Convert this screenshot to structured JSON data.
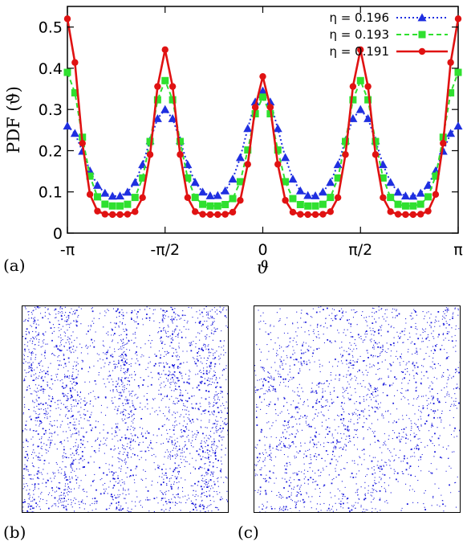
{
  "chart_data": {
    "type": "line",
    "xlabel": "ϑ",
    "ylabel": "PDF (ϑ)",
    "xlim": [
      -3.1416,
      3.1416
    ],
    "ylim": [
      0,
      0.55
    ],
    "x_ticks": [
      {
        "value": -3.1416,
        "label": "-π"
      },
      {
        "value": -1.5708,
        "label": "-π/2"
      },
      {
        "value": 0,
        "label": "0"
      },
      {
        "value": 1.5708,
        "label": "π/2"
      },
      {
        "value": 3.1416,
        "label": "π"
      }
    ],
    "y_ticks": [
      {
        "value": 0,
        "label": "0"
      },
      {
        "value": 0.1,
        "label": "0.1"
      },
      {
        "value": 0.2,
        "label": "0.2"
      },
      {
        "value": 0.3,
        "label": "0.3"
      },
      {
        "value": 0.4,
        "label": "0.4"
      },
      {
        "value": 0.5,
        "label": "0.5"
      }
    ],
    "grid": false,
    "legend_position": "top-right",
    "series": [
      {
        "name": "η = 0.196",
        "color": "#1f2fe0",
        "marker": "triangle",
        "line": "dotted",
        "shape": {
          "peak_pi": 0.26,
          "peak_half": 0.3,
          "peak_zero": 0.345,
          "min": 0.085,
          "width": 0.26
        }
      },
      {
        "name": "η = 0.193",
        "color": "#2fe02f",
        "marker": "square",
        "line": "dashed",
        "shape": {
          "peak_pi": 0.39,
          "peak_half": 0.37,
          "peak_zero": 0.33,
          "min": 0.065,
          "width": 0.21
        }
      },
      {
        "name": "η = 0.191",
        "color": "#e01212",
        "marker": "circle",
        "line": "solid",
        "shape": {
          "peak_pi": 0.52,
          "peak_half": 0.445,
          "peak_zero": 0.38,
          "min": 0.045,
          "width": 0.17
        }
      }
    ]
  },
  "panels": {
    "a": "(a)",
    "b": "(b)",
    "c": "(c)"
  },
  "snapshots": {
    "b": {
      "color": "#1a1adc",
      "pattern": "vertical-bands"
    },
    "c": {
      "color": "#1a1adc",
      "pattern": "diagonal-bands"
    }
  }
}
